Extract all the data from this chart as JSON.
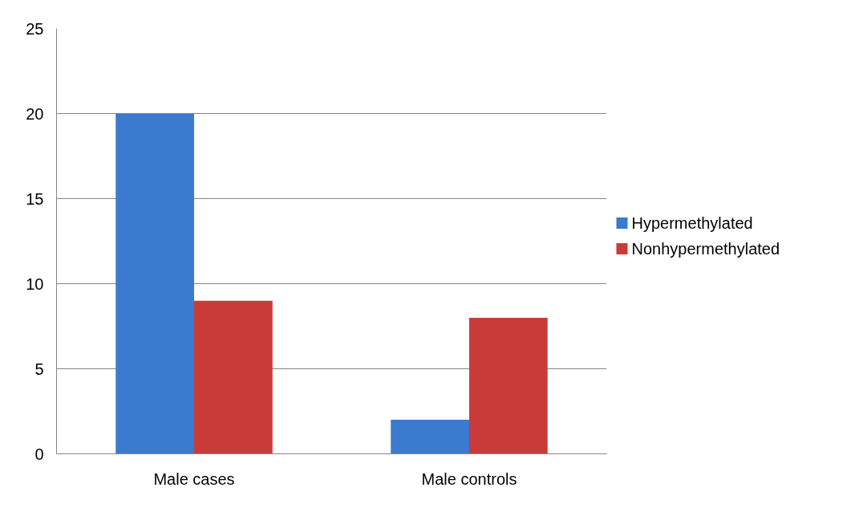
{
  "chart_data": {
    "type": "bar",
    "categories": [
      "Male cases",
      "Male controls"
    ],
    "series": [
      {
        "name": "Hypermethylated",
        "color": "#3a7bcf",
        "values": [
          20,
          2
        ]
      },
      {
        "name": "Nonhypermethylated",
        "color": "#c93b39",
        "values": [
          9,
          8
        ]
      }
    ],
    "ylim": [
      0,
      25
    ],
    "yticks": [
      0,
      5,
      10,
      15,
      20,
      25
    ],
    "grid": "y",
    "legend": "right"
  }
}
